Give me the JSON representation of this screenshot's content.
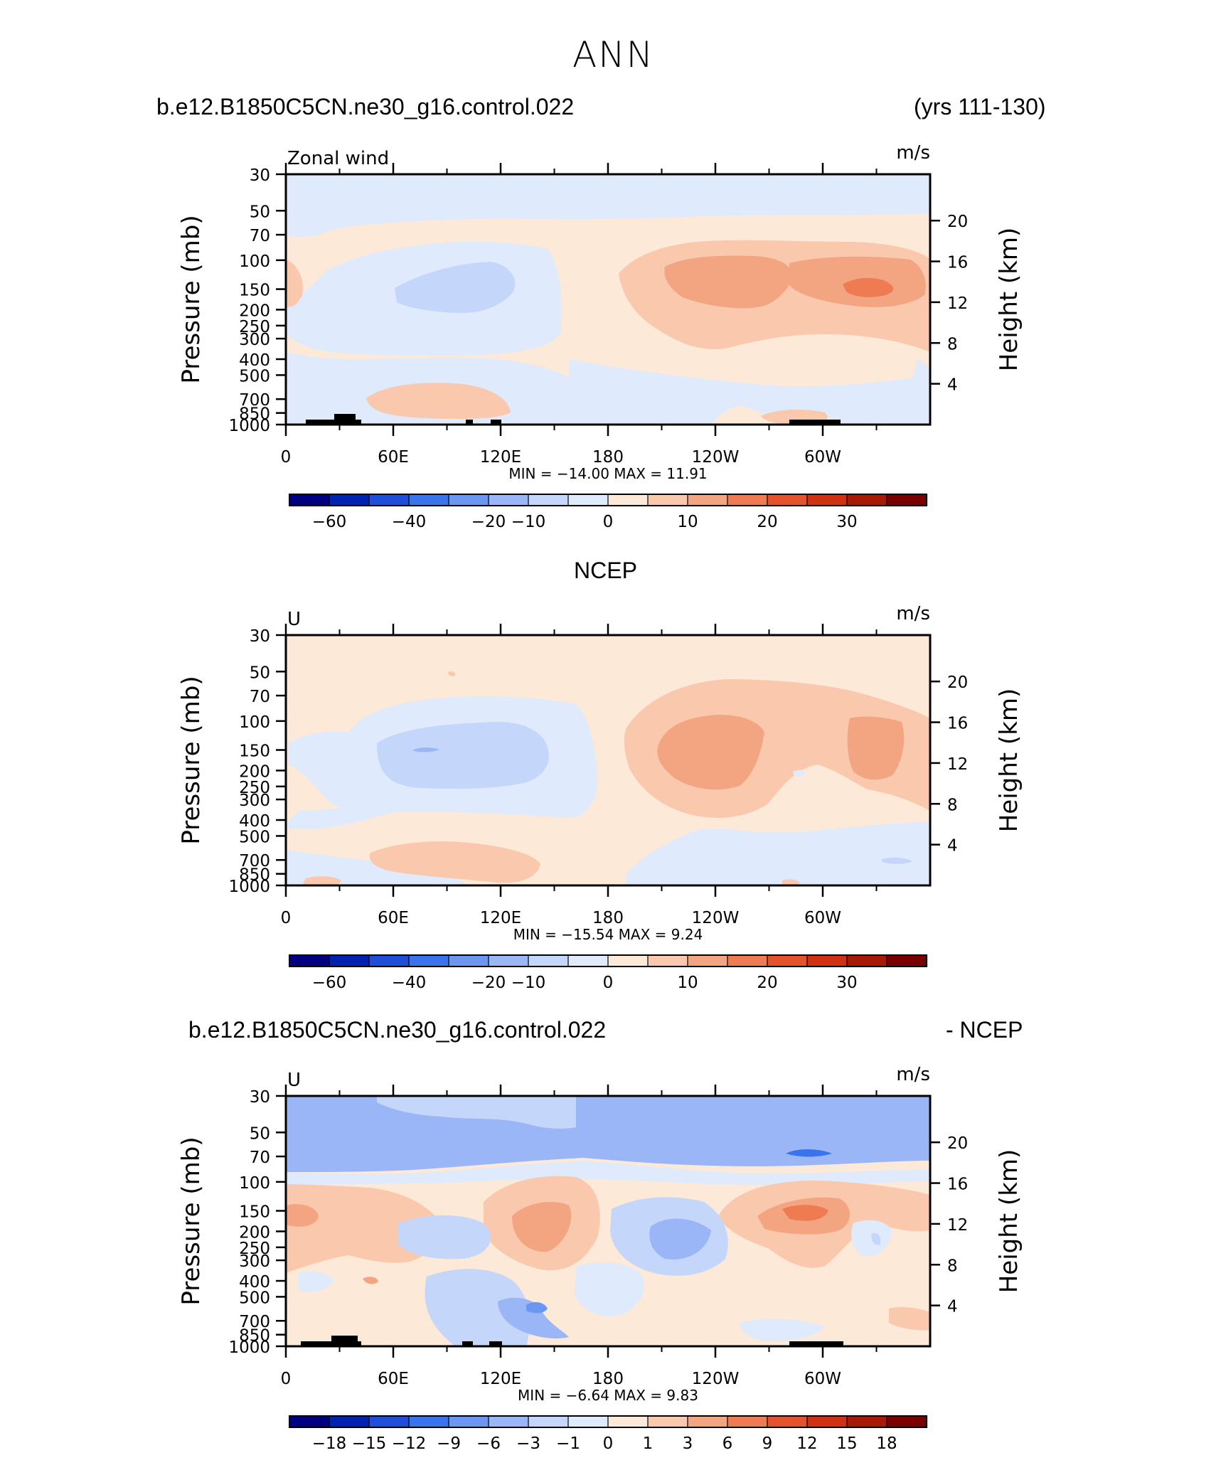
{
  "title": "ANN",
  "header_case": "b.e12.B1850C5CN.ne30_g16.control.022",
  "header_years": "(yrs 111-130)",
  "panels": [
    {
      "center_title": "",
      "left_label": "Zonal wind",
      "units": "m/s",
      "min_max": "MIN = −14.00   MAX =   11.91",
      "colorbar_ticks": [
        "−60",
        "−40",
        "−20",
        "−10",
        "0",
        "10",
        "20",
        "30"
      ],
      "colorbar_colors": [
        "#000080",
        "#0022b0",
        "#1f4fd8",
        "#3a74ec",
        "#6b96f2",
        "#9ab6f6",
        "#c4d6fa",
        "#dfeafc",
        "#fde9d7",
        "#f9c8ad",
        "#f3a582",
        "#ee7b52",
        "#e5532c",
        "#cf3112",
        "#a91a06",
        "#7a0000"
      ],
      "contour_levels": "shaded",
      "chart_data": {
        "type": "heatmap",
        "title": "Zonal wind",
        "xlabel": "",
        "ylabel": "Pressure (mb)",
        "ylabel_right": "Height (km)",
        "x_ticks": [
          "0",
          "60E",
          "120E",
          "180",
          "120W",
          "60W"
        ],
        "y_ticks": [
          "30",
          "50",
          "70",
          "100",
          "150",
          "200",
          "250",
          "300",
          "400",
          "500",
          "700",
          "850",
          "1000"
        ],
        "y_right_ticks": [
          "20",
          "16",
          "12",
          "8",
          "4"
        ],
        "min": -14.0,
        "max": 11.91
      }
    },
    {
      "center_title": "NCEP",
      "left_label": "U",
      "units": "m/s",
      "min_max": "MIN = −15.54   MAX =    9.24",
      "colorbar_ticks": [
        "−60",
        "−40",
        "−20",
        "−10",
        "0",
        "10",
        "20",
        "30"
      ],
      "colorbar_colors": [
        "#000080",
        "#0022b0",
        "#1f4fd8",
        "#3a74ec",
        "#6b96f2",
        "#9ab6f6",
        "#c4d6fa",
        "#dfeafc",
        "#fde9d7",
        "#f9c8ad",
        "#f3a582",
        "#ee7b52",
        "#e5532c",
        "#cf3112",
        "#a91a06",
        "#7a0000"
      ],
      "chart_data": {
        "type": "heatmap",
        "title": "U",
        "xlabel": "",
        "ylabel": "Pressure (mb)",
        "ylabel_right": "Height (km)",
        "x_ticks": [
          "0",
          "60E",
          "120E",
          "180",
          "120W",
          "60W"
        ],
        "y_ticks": [
          "30",
          "50",
          "70",
          "100",
          "150",
          "200",
          "250",
          "300",
          "400",
          "500",
          "700",
          "850",
          "1000"
        ],
        "y_right_ticks": [
          "20",
          "16",
          "12",
          "8",
          "4"
        ],
        "min": -15.54,
        "max": 9.24
      }
    },
    {
      "center_title": "",
      "left_label": "U",
      "units": "m/s",
      "min_max": "MIN =   −6.64   MAX =    9.83",
      "colorbar_ticks": [
        "−18",
        "−15",
        "−12",
        "−9",
        "−6",
        "−3",
        "−1",
        "0",
        "1",
        "3",
        "6",
        "9",
        "12",
        "15",
        "18"
      ],
      "colorbar_colors": [
        "#000080",
        "#0022b0",
        "#1f4fd8",
        "#3a74ec",
        "#6b96f2",
        "#9ab6f6",
        "#c4d6fa",
        "#dfeafc",
        "#fde9d7",
        "#f9c8ad",
        "#f3a582",
        "#ee7b52",
        "#e5532c",
        "#cf3112",
        "#a91a06",
        "#7a0000"
      ],
      "chart_data": {
        "type": "heatmap",
        "title": "U",
        "xlabel": "",
        "ylabel": "Pressure (mb)",
        "ylabel_right": "Height (km)",
        "x_ticks": [
          "0",
          "60E",
          "120E",
          "180",
          "120W",
          "60W"
        ],
        "y_ticks": [
          "30",
          "50",
          "70",
          "100",
          "150",
          "200",
          "250",
          "300",
          "400",
          "500",
          "700",
          "850",
          "1000"
        ],
        "y_right_ticks": [
          "20",
          "16",
          "12",
          "8",
          "4"
        ],
        "min": -6.64,
        "max": 9.83
      }
    }
  ],
  "diff_title_left": "b.e12.B1850C5CN.ne30_g16.control.022",
  "diff_title_right": "- NCEP",
  "axis_labels": {
    "left": "Pressure  (mb)",
    "right": "Height  (km)"
  },
  "chart_data": [
    {
      "type": "heatmap",
      "title": "Zonal wind",
      "ylabel": "Pressure  (mb)",
      "ylabel_right": "Height  (km)",
      "x_ticks": [
        "0",
        "60E",
        "120E",
        "180",
        "120W",
        "60W"
      ],
      "min": -14.0,
      "max": 11.91
    },
    {
      "type": "heatmap",
      "title": "NCEP",
      "ylabel": "Pressure  (mb)",
      "ylabel_right": "Height  (km)",
      "x_ticks": [
        "0",
        "60E",
        "120E",
        "180",
        "120W",
        "60W"
      ],
      "min": -15.54,
      "max": 9.24
    },
    {
      "type": "heatmap",
      "title": "b.e12.B1850C5CN.ne30_g16.control.022 - NCEP",
      "ylabel": "Pressure  (mb)",
      "ylabel_right": "Height  (km)",
      "x_ticks": [
        "0",
        "60E",
        "120E",
        "180",
        "120W",
        "60W"
      ],
      "min": -6.64,
      "max": 9.83
    }
  ]
}
